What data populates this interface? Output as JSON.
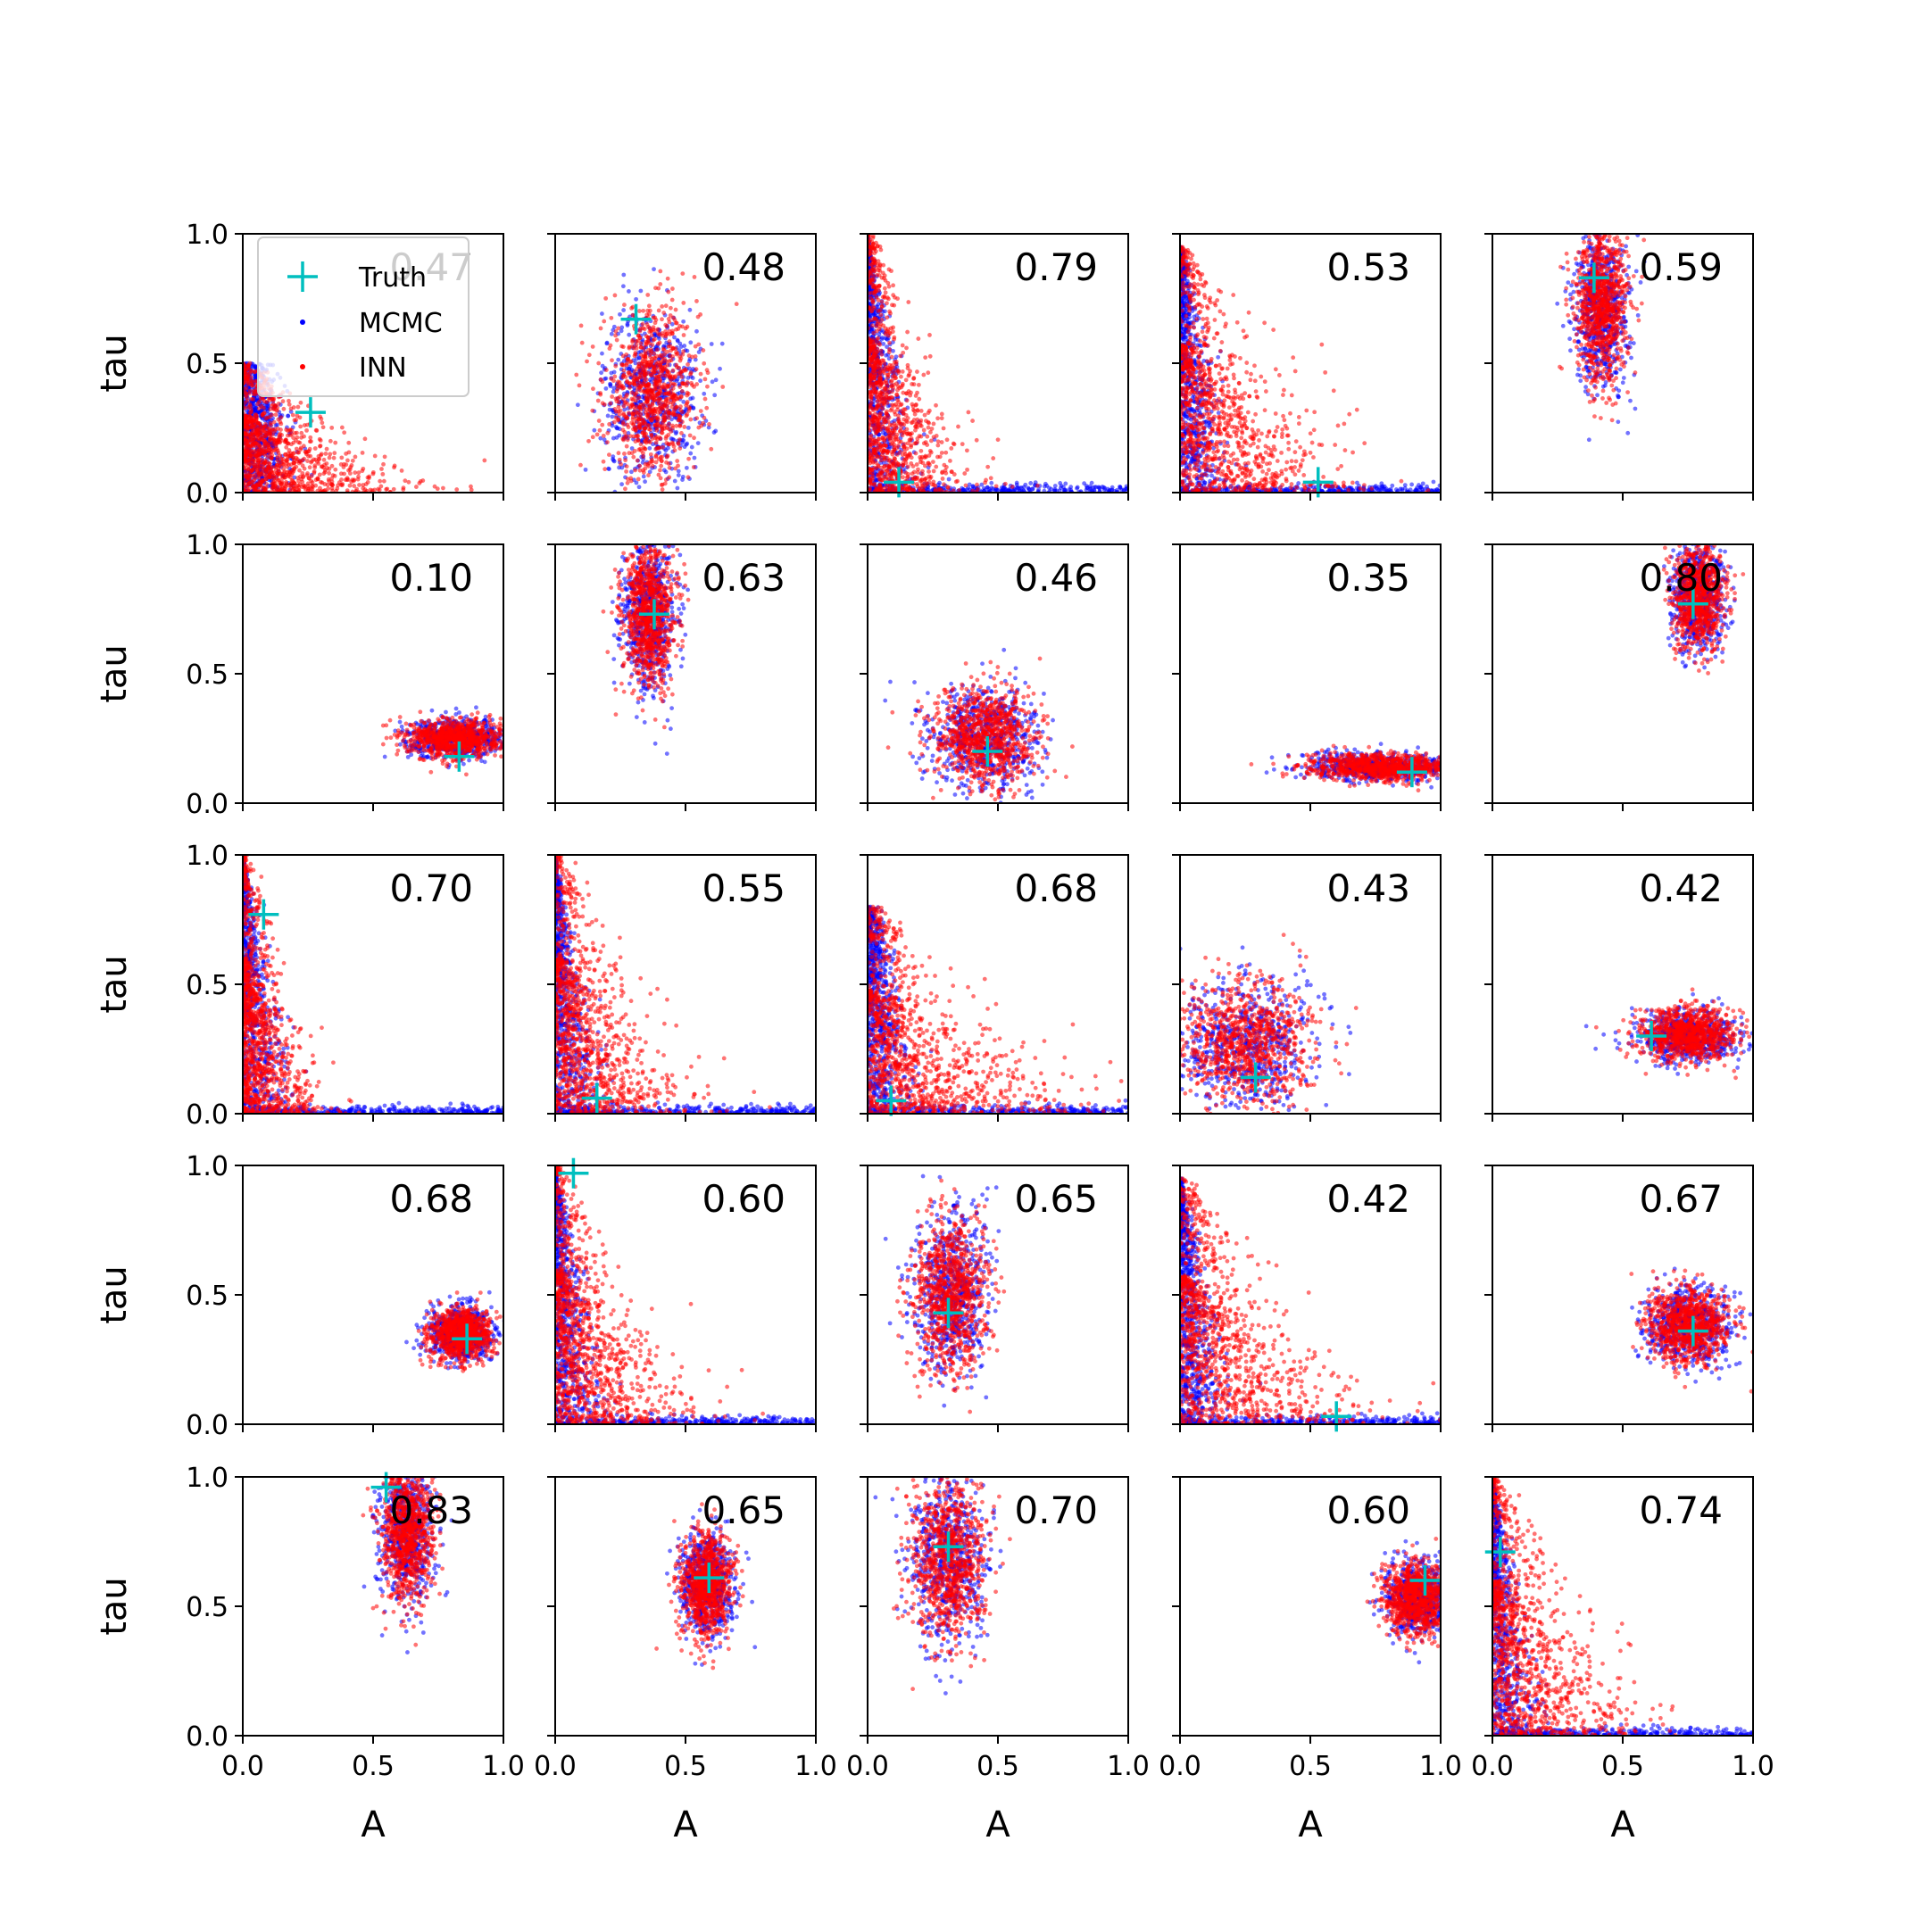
{
  "chart_data": {
    "type": "scatter",
    "layout": {
      "rows": 5,
      "cols": 5
    },
    "xlabel": "A",
    "ylabel": "tau",
    "xlim": [
      0,
      1
    ],
    "ylim": [
      0,
      1
    ],
    "xticks": [
      "0.0",
      "0.5",
      "1.0"
    ],
    "yticks": [
      "0.0",
      "0.5",
      "1.0"
    ],
    "legend": {
      "placement": "upper-left of first panel",
      "entries": [
        {
          "label": "Truth",
          "color": "#00bfbf",
          "marker": "plus"
        },
        {
          "label": "MCMC",
          "color": "#0000ff",
          "marker": "dot"
        },
        {
          "label": "INN",
          "color": "#ff0000",
          "marker": "dot"
        }
      ]
    },
    "colors": {
      "truth": "#00bfbf",
      "mcmc": "#0000ff",
      "inn": "#ff0000"
    },
    "panels": [
      {
        "score": "0.47",
        "truth": [
          0.26,
          0.31
        ],
        "cloud": {
          "shape": "corner",
          "xmax": 0.7,
          "ymax": 0.5,
          "mcmc_ymax": 1.0,
          "mcmc_xmax": 0.15
        }
      },
      {
        "score": "0.48",
        "truth": [
          0.31,
          0.67
        ],
        "cloud": {
          "shape": "blob",
          "cx": 0.37,
          "cy": 0.38,
          "sx": 0.09,
          "sy": 0.16
        }
      },
      {
        "score": "0.79",
        "truth": [
          0.12,
          0.04
        ],
        "cloud": {
          "shape": "corner",
          "xmax": 0.45,
          "ymax": 1.0,
          "mcmc_tail": true
        }
      },
      {
        "score": "0.53",
        "truth": [
          0.53,
          0.04
        ],
        "cloud": {
          "shape": "corner",
          "xmax": 0.75,
          "ymax": 0.95,
          "mcmc_tail": true
        }
      },
      {
        "score": "0.59",
        "truth": [
          0.39,
          0.83
        ],
        "cloud": {
          "shape": "blob",
          "cx": 0.42,
          "cy": 0.72,
          "sx": 0.05,
          "sy": 0.15
        }
      },
      {
        "score": "0.10",
        "truth": [
          0.83,
          0.18
        ],
        "cloud": {
          "shape": "blob",
          "cx": 0.82,
          "cy": 0.25,
          "sx": 0.09,
          "sy": 0.035
        }
      },
      {
        "score": "0.63",
        "truth": [
          0.38,
          0.73
        ],
        "cloud": {
          "shape": "blob",
          "cx": 0.36,
          "cy": 0.73,
          "sx": 0.05,
          "sy": 0.14
        }
      },
      {
        "score": "0.46",
        "truth": [
          0.46,
          0.2
        ],
        "cloud": {
          "shape": "blob",
          "cx": 0.45,
          "cy": 0.25,
          "sx": 0.1,
          "sy": 0.1
        }
      },
      {
        "score": "0.35",
        "truth": [
          0.89,
          0.12
        ],
        "cloud": {
          "shape": "blob",
          "cx": 0.77,
          "cy": 0.14,
          "sx": 0.14,
          "sy": 0.025
        }
      },
      {
        "score": "0.80",
        "truth": [
          0.77,
          0.77
        ],
        "cloud": {
          "shape": "blob",
          "cx": 0.79,
          "cy": 0.8,
          "sx": 0.05,
          "sy": 0.1
        }
      },
      {
        "score": "0.70",
        "truth": [
          0.08,
          0.77
        ],
        "cloud": {
          "shape": "corner",
          "xmax": 0.35,
          "ymax": 1.0,
          "mcmc_tail": true
        }
      },
      {
        "score": "0.55",
        "truth": [
          0.16,
          0.06
        ],
        "cloud": {
          "shape": "corner",
          "xmax": 0.6,
          "ymax": 1.0,
          "mcmc_tail": true
        }
      },
      {
        "score": "0.68",
        "truth": [
          0.09,
          0.05
        ],
        "cloud": {
          "shape": "corner",
          "xmax": 0.9,
          "ymax": 0.8,
          "mcmc_tail": true
        }
      },
      {
        "score": "0.43",
        "truth": [
          0.29,
          0.14
        ],
        "cloud": {
          "shape": "blob",
          "cx": 0.25,
          "cy": 0.27,
          "sx": 0.13,
          "sy": 0.12
        }
      },
      {
        "score": "0.42",
        "truth": [
          0.61,
          0.3
        ],
        "cloud": {
          "shape": "blob",
          "cx": 0.75,
          "cy": 0.3,
          "sx": 0.09,
          "sy": 0.05
        }
      },
      {
        "score": "0.68",
        "truth": [
          0.86,
          0.33
        ],
        "cloud": {
          "shape": "blob",
          "cx": 0.84,
          "cy": 0.35,
          "sx": 0.06,
          "sy": 0.05
        }
      },
      {
        "score": "0.60",
        "truth": [
          0.07,
          0.97
        ],
        "cloud": {
          "shape": "corner",
          "xmax": 0.6,
          "ymax": 1.0,
          "mcmc_tail": true
        }
      },
      {
        "score": "0.65",
        "truth": [
          0.31,
          0.43
        ],
        "cloud": {
          "shape": "blob",
          "cx": 0.32,
          "cy": 0.5,
          "sx": 0.07,
          "sy": 0.15
        }
      },
      {
        "score": "0.42",
        "truth": [
          0.6,
          0.03
        ],
        "cloud": {
          "shape": "corner",
          "xmax": 0.8,
          "ymax": 0.95,
          "mcmc_tail": true
        }
      },
      {
        "score": "0.67",
        "truth": [
          0.77,
          0.36
        ],
        "cloud": {
          "shape": "blob",
          "cx": 0.75,
          "cy": 0.38,
          "sx": 0.08,
          "sy": 0.07
        }
      },
      {
        "score": "0.83",
        "truth": [
          0.55,
          0.96
        ],
        "cloud": {
          "shape": "blob",
          "cx": 0.63,
          "cy": 0.78,
          "sx": 0.05,
          "sy": 0.13
        }
      },
      {
        "score": "0.65",
        "truth": [
          0.59,
          0.61
        ],
        "cloud": {
          "shape": "blob",
          "cx": 0.58,
          "cy": 0.58,
          "sx": 0.05,
          "sy": 0.1
        }
      },
      {
        "score": "0.70",
        "truth": [
          0.31,
          0.73
        ],
        "cloud": {
          "shape": "blob",
          "cx": 0.31,
          "cy": 0.68,
          "sx": 0.07,
          "sy": 0.16
        }
      },
      {
        "score": "0.60",
        "truth": [
          0.94,
          0.6
        ],
        "cloud": {
          "shape": "blob",
          "cx": 0.91,
          "cy": 0.53,
          "sx": 0.06,
          "sy": 0.07
        }
      },
      {
        "score": "0.74",
        "truth": [
          0.03,
          0.71
        ],
        "cloud": {
          "shape": "corner",
          "xmax": 0.65,
          "ymax": 1.0,
          "mcmc_tail": true
        }
      }
    ]
  }
}
